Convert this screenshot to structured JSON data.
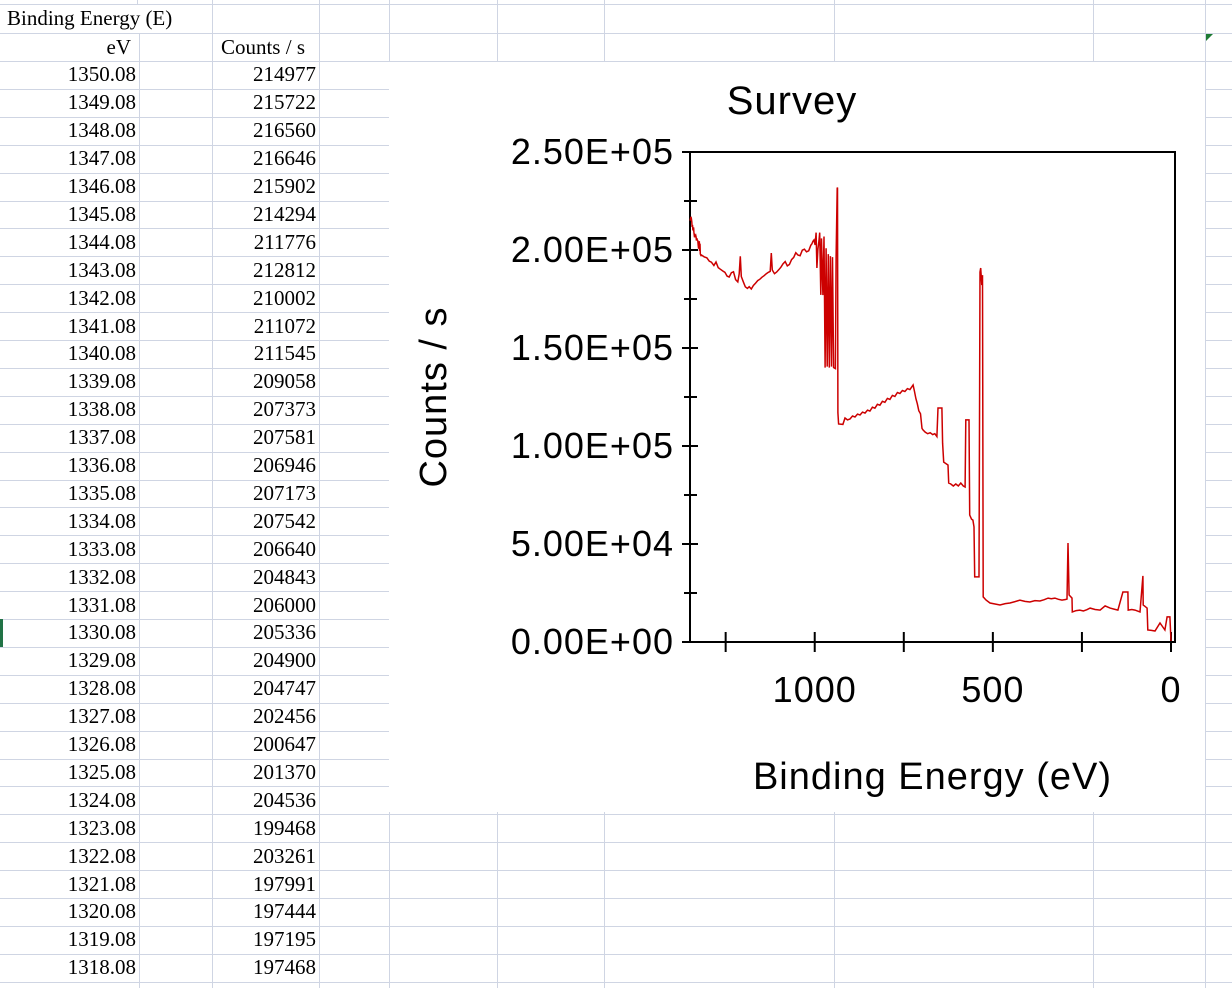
{
  "sheet": {
    "title_cell": "Binding Energy (E)",
    "col_a_header": "eV",
    "col_c_header": "Counts / s",
    "rows": [
      [
        "1350.08",
        "214977"
      ],
      [
        "1349.08",
        "215722"
      ],
      [
        "1348.08",
        "216560"
      ],
      [
        "1347.08",
        "216646"
      ],
      [
        "1346.08",
        "215902"
      ],
      [
        "1345.08",
        "214294"
      ],
      [
        "1344.08",
        "211776"
      ],
      [
        "1343.08",
        "212812"
      ],
      [
        "1342.08",
        "210002"
      ],
      [
        "1341.08",
        "211072"
      ],
      [
        "1340.08",
        "211545"
      ],
      [
        "1339.08",
        "209058"
      ],
      [
        "1338.08",
        "207373"
      ],
      [
        "1337.08",
        "207581"
      ],
      [
        "1336.08",
        "206946"
      ],
      [
        "1335.08",
        "207173"
      ],
      [
        "1334.08",
        "207542"
      ],
      [
        "1333.08",
        "206640"
      ],
      [
        "1332.08",
        "204843"
      ],
      [
        "1331.08",
        "206000"
      ],
      [
        "1330.08",
        "205336"
      ],
      [
        "1329.08",
        "204900"
      ],
      [
        "1328.08",
        "204747"
      ],
      [
        "1327.08",
        "202456"
      ],
      [
        "1326.08",
        "200647"
      ],
      [
        "1325.08",
        "201370"
      ],
      [
        "1324.08",
        "204536"
      ],
      [
        "1323.08",
        "199468"
      ],
      [
        "1322.08",
        "203261"
      ],
      [
        "1321.08",
        "197991"
      ],
      [
        "1320.08",
        "197444"
      ],
      [
        "1319.08",
        "197195"
      ],
      [
        "1318.08",
        "197468"
      ]
    ]
  },
  "chart": {
    "title": "Survey",
    "y_axis_title": "Counts / s",
    "x_axis_title": "Binding Energy (eV)",
    "line_color": "#cc0000",
    "accent_green": "#217346"
  },
  "chart_data": {
    "type": "line",
    "title": "Survey",
    "xlabel": "Binding Energy (eV)",
    "ylabel": "Counts / s",
    "x_axis": {
      "min": 0,
      "max": 1350.08,
      "reversed": true,
      "tick_step": 250,
      "ticks": [
        1250,
        1000,
        750,
        500,
        250,
        0
      ],
      "labeled_ticks": [
        1000,
        500,
        0
      ],
      "labels": [
        "1000",
        "500",
        "0"
      ]
    },
    "y_axis": {
      "min": 0,
      "max": 250000,
      "major_step": 50000,
      "minor_step": 25000,
      "major_ticks": [
        250000,
        200000,
        150000,
        100000,
        50000,
        0
      ],
      "minor_ticks": [
        225000,
        175000,
        125000,
        75000,
        25000
      ],
      "labels": [
        "2.50E+05",
        "2.00E+05",
        "1.50E+05",
        "1.00E+05",
        "5.00E+04",
        "0.00E+00"
      ]
    },
    "series": [
      {
        "name": "Survey",
        "points": [
          [
            1350.08,
            214977
          ],
          [
            1349.08,
            215722
          ],
          [
            1348.08,
            216560
          ],
          [
            1347.08,
            216646
          ],
          [
            1346.08,
            215902
          ],
          [
            1345.08,
            214294
          ],
          [
            1344.08,
            211776
          ],
          [
            1343.08,
            212812
          ],
          [
            1342.08,
            210002
          ],
          [
            1341.08,
            211072
          ],
          [
            1340.08,
            211545
          ],
          [
            1339.08,
            209058
          ],
          [
            1338.08,
            207373
          ],
          [
            1337.08,
            207581
          ],
          [
            1336.08,
            206946
          ],
          [
            1335.08,
            207173
          ],
          [
            1334.08,
            207542
          ],
          [
            1333.08,
            206640
          ],
          [
            1332.08,
            204843
          ],
          [
            1331.08,
            206000
          ],
          [
            1330.08,
            205336
          ],
          [
            1329.08,
            204900
          ],
          [
            1328.08,
            204747
          ],
          [
            1327.08,
            202456
          ],
          [
            1326.08,
            200647
          ],
          [
            1325.08,
            201370
          ],
          [
            1324.08,
            204536
          ],
          [
            1323.08,
            199468
          ],
          [
            1322.08,
            203261
          ],
          [
            1321.08,
            197991
          ],
          [
            1320.08,
            197444
          ],
          [
            1319.08,
            197195
          ],
          [
            1318.08,
            197468
          ],
          [
            1310,
            196500
          ],
          [
            1303,
            196000
          ],
          [
            1296,
            194300
          ],
          [
            1290,
            193800
          ],
          [
            1283,
            192100
          ],
          [
            1277,
            193900
          ],
          [
            1271,
            191000
          ],
          [
            1265,
            190200
          ],
          [
            1258,
            189300
          ],
          [
            1252,
            188600
          ],
          [
            1246,
            186700
          ],
          [
            1240,
            186200
          ],
          [
            1234,
            188400
          ],
          [
            1228,
            188900
          ],
          [
            1222,
            184900
          ],
          [
            1216,
            183700
          ],
          [
            1212,
            187800
          ],
          [
            1209,
            196800
          ],
          [
            1206,
            186500
          ],
          [
            1200,
            183500
          ],
          [
            1195,
            181200
          ],
          [
            1189,
            180400
          ],
          [
            1184,
            181300
          ],
          [
            1178,
            180100
          ],
          [
            1172,
            181900
          ],
          [
            1166,
            183100
          ],
          [
            1160,
            184400
          ],
          [
            1154,
            185100
          ],
          [
            1148,
            186100
          ],
          [
            1142,
            186900
          ],
          [
            1136,
            187900
          ],
          [
            1130,
            188600
          ],
          [
            1125,
            189100
          ],
          [
            1122,
            198400
          ],
          [
            1119,
            189800
          ],
          [
            1113,
            187900
          ],
          [
            1107,
            188700
          ],
          [
            1101,
            189900
          ],
          [
            1095,
            191200
          ],
          [
            1089,
            192900
          ],
          [
            1083,
            194100
          ],
          [
            1077,
            191900
          ],
          [
            1071,
            192600
          ],
          [
            1065,
            195100
          ],
          [
            1059,
            196200
          ],
          [
            1053,
            198600
          ],
          [
            1047,
            197400
          ],
          [
            1041,
            197100
          ],
          [
            1035,
            199900
          ],
          [
            1029,
            200400
          ],
          [
            1023,
            199100
          ],
          [
            1017,
            199600
          ],
          [
            1011,
            202400
          ],
          [
            1008,
            203100
          ],
          [
            1005,
            204400
          ],
          [
            1002,
            205100
          ],
          [
            999,
            202600
          ],
          [
            996,
            208900
          ],
          [
            994,
            190800
          ],
          [
            991,
            200400
          ],
          [
            988,
            204900
          ],
          [
            986,
            208900
          ],
          [
            983,
            177100
          ],
          [
            981,
            205900
          ],
          [
            977,
            177000
          ],
          [
            974,
            206900
          ],
          [
            971,
            140000
          ],
          [
            968,
            200900
          ],
          [
            965,
            140500
          ],
          [
            962,
            197900
          ],
          [
            959,
            140000
          ],
          [
            956,
            196900
          ],
          [
            953,
            140500
          ],
          [
            950,
            196400
          ],
          [
            947,
            140000
          ],
          [
            942,
            139500
          ],
          [
            940,
            196400
          ],
          [
            937,
            231500
          ],
          [
            936,
            231900
          ],
          [
            935,
            117000
          ],
          [
            933,
            111200
          ],
          [
            921,
            111000
          ],
          [
            915,
            114300
          ],
          [
            908,
            113300
          ],
          [
            901,
            113800
          ],
          [
            894,
            115300
          ],
          [
            887,
            114800
          ],
          [
            880,
            116300
          ],
          [
            873,
            115800
          ],
          [
            866,
            117300
          ],
          [
            859,
            116800
          ],
          [
            852,
            118300
          ],
          [
            845,
            117800
          ],
          [
            838,
            119800
          ],
          [
            831,
            119300
          ],
          [
            824,
            121300
          ],
          [
            817,
            120800
          ],
          [
            810,
            122800
          ],
          [
            803,
            122300
          ],
          [
            796,
            124300
          ],
          [
            789,
            123800
          ],
          [
            782,
            125800
          ],
          [
            775,
            125300
          ],
          [
            768,
            127300
          ],
          [
            761,
            126800
          ],
          [
            754,
            128300
          ],
          [
            747,
            127800
          ],
          [
            740,
            129300
          ],
          [
            733,
            128800
          ],
          [
            727,
            130300
          ],
          [
            724,
            131100
          ],
          [
            720,
            127800
          ],
          [
            716,
            124200
          ],
          [
            712,
            121600
          ],
          [
            708,
            118000
          ],
          [
            703,
            116500
          ],
          [
            699,
            109000
          ],
          [
            696,
            108200
          ],
          [
            690,
            107100
          ],
          [
            683,
            106300
          ],
          [
            676,
            106800
          ],
          [
            669,
            105800
          ],
          [
            663,
            106300
          ],
          [
            657,
            104800
          ],
          [
            654,
            119400
          ],
          [
            643,
            119400
          ],
          [
            641,
            101500
          ],
          [
            638,
            91800
          ],
          [
            630,
            90800
          ],
          [
            626,
            90300
          ],
          [
            624,
            81100
          ],
          [
            618,
            80600
          ],
          [
            611,
            79600
          ],
          [
            604,
            80600
          ],
          [
            597,
            79600
          ],
          [
            590,
            81100
          ],
          [
            583,
            79600
          ],
          [
            578,
            79100
          ],
          [
            576,
            113300
          ],
          [
            567,
            113300
          ],
          [
            565,
            64800
          ],
          [
            560,
            62700
          ],
          [
            556,
            62200
          ],
          [
            553,
            58700
          ],
          [
            551,
            33200
          ],
          [
            539,
            33200
          ],
          [
            536,
            188700
          ],
          [
            534,
            190800
          ],
          [
            531,
            182100
          ],
          [
            529,
            187200
          ],
          [
            527,
            23000
          ],
          [
            519,
            21400
          ],
          [
            508,
            19900
          ],
          [
            480,
            18900
          ],
          [
            465,
            19600
          ],
          [
            452,
            19900
          ],
          [
            438,
            20600
          ],
          [
            424,
            21400
          ],
          [
            410,
            20700
          ],
          [
            396,
            20400
          ],
          [
            382,
            21100
          ],
          [
            368,
            20900
          ],
          [
            356,
            21600
          ],
          [
            345,
            22400
          ],
          [
            336,
            22100
          ],
          [
            326,
            22400
          ],
          [
            316,
            21800
          ],
          [
            306,
            21400
          ],
          [
            296,
            21700
          ],
          [
            292,
            21900
          ],
          [
            289,
            50500
          ],
          [
            286,
            24000
          ],
          [
            278,
            22400
          ],
          [
            277,
            15300
          ],
          [
            266,
            16000
          ],
          [
            256,
            16300
          ],
          [
            246,
            15800
          ],
          [
            236,
            16500
          ],
          [
            227,
            17300
          ],
          [
            213,
            16600
          ],
          [
            199,
            16300
          ],
          [
            185,
            18400
          ],
          [
            171,
            17300
          ],
          [
            160,
            16800
          ],
          [
            149,
            16300
          ],
          [
            135,
            25500
          ],
          [
            121,
            25500
          ],
          [
            120,
            16300
          ],
          [
            110,
            16600
          ],
          [
            101,
            16300
          ],
          [
            87,
            15300
          ],
          [
            79,
            33700
          ],
          [
            78,
            18900
          ],
          [
            67,
            17300
          ],
          [
            65,
            6100
          ],
          [
            55,
            5900
          ],
          [
            45,
            5600
          ],
          [
            31,
            9700
          ],
          [
            17,
            6100
          ],
          [
            11,
            12800
          ],
          [
            3,
            12800
          ],
          [
            0,
            500
          ]
        ]
      }
    ]
  }
}
